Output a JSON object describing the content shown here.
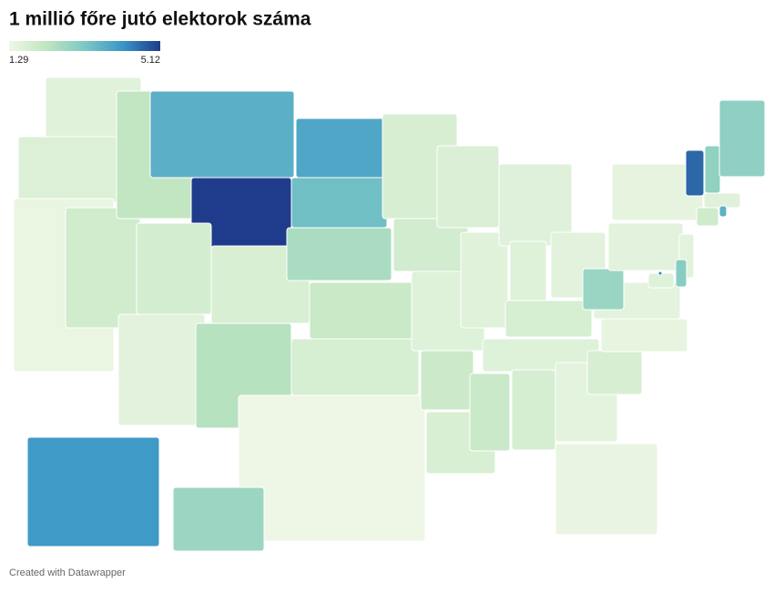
{
  "chart_data": {
    "type": "choropleth",
    "title": "1 millió főre jutó elektorok száma",
    "legend": {
      "min": 1.29,
      "max": 5.12
    },
    "colors": [
      "#eef7e6",
      "#bfe5bf",
      "#7cc8c4",
      "#3a96c7",
      "#1f3b8c"
    ],
    "values": [
      1.55,
      1.65,
      1.38,
      1.9,
      2.17,
      3.69,
      5.12,
      1.83,
      1.54,
      1.73,
      2.36,
      3.85,
      3.38,
      2.55,
      2.04,
      1.77,
      1.29,
      1.75,
      1.88,
      1.62,
      1.99,
      1.72,
      1.69,
      1.56,
      1.59,
      1.62,
      1.53,
      1.78,
      1.62,
      2.03,
      1.79,
      1.49,
      1.39,
      1.76,
      1.44,
      1.51,
      2.79,
      1.54,
      1.46,
      4.66,
      2.9,
      2.94,
      1.59,
      3.65,
      1.94,
      1.51,
      3.03,
      1.62,
      4.36,
      4.09,
      2.75
    ],
    "credit": "Created with Datawrapper"
  }
}
